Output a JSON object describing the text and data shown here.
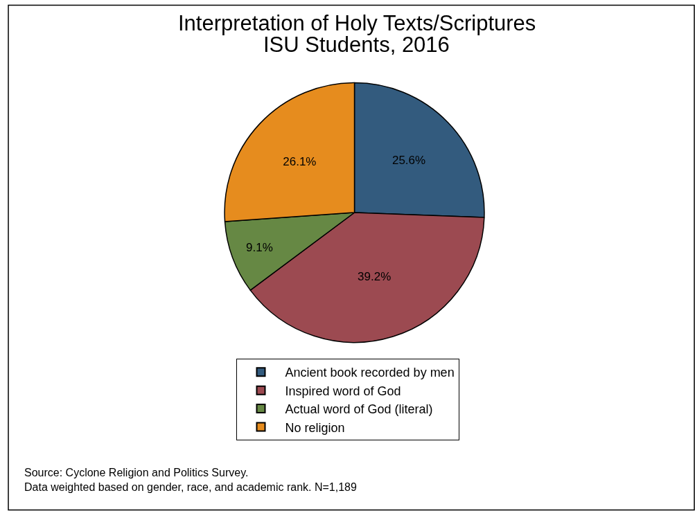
{
  "chart_data": {
    "type": "pie",
    "title": "Interpretation of Holy Texts/Scriptures",
    "subtitle": "ISU Students, 2016",
    "categories": [
      "Ancient book recorded by men",
      "Inspired word of God",
      "Actual word of God (literal)",
      "No religion"
    ],
    "values": [
      25.6,
      39.2,
      9.1,
      26.1
    ],
    "colors": [
      "#335b7e",
      "#9c4a51",
      "#668844",
      "#e68c1e"
    ],
    "value_labels": [
      "25.6%",
      "39.2%",
      "9.1%",
      "26.1%"
    ],
    "legend": "bottom",
    "annotations": [
      "Source: Cyclone Religion and Politics Survey.",
      "Data weighted based on gender, race, and academic rank. N=1,189"
    ]
  }
}
